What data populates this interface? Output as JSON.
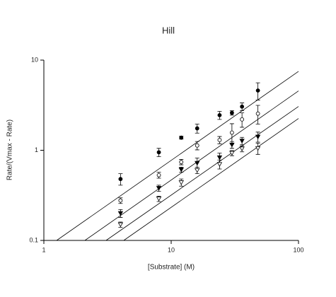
{
  "chart_data": {
    "type": "scatter",
    "title": "Hill",
    "x_label": "[Substrate] (M)",
    "y_label": "Rate/(Vmax - Rate)",
    "xscale": "log",
    "yscale": "log",
    "xlim": [
      1,
      100
    ],
    "ylim": [
      0.1,
      10
    ],
    "xticks": [
      1,
      10,
      100
    ],
    "yticks": [
      0.1,
      1,
      10
    ],
    "color": "#000000",
    "x": [
      4,
      8,
      12,
      16,
      24,
      30,
      36,
      48
    ],
    "series": [
      {
        "marker": "circle",
        "filled": true,
        "values": [
          0.48,
          0.95,
          1.38,
          1.75,
          2.45,
          2.6,
          3.05,
          4.6
        ],
        "errors": [
          0.07,
          0.1,
          0.05,
          0.2,
          0.25,
          0.15,
          0.3,
          1.0
        ],
        "fit": {
          "x": [
            1.26,
            100
          ],
          "values": [
            0.1,
            7.5
          ]
        }
      },
      {
        "marker": "circle",
        "filled": false,
        "values": [
          0.277,
          0.53,
          0.74,
          1.13,
          1.3,
          1.57,
          2.2,
          2.55
        ],
        "errors": [
          0.02,
          0.04,
          0.05,
          0.12,
          0.12,
          0.4,
          0.4,
          0.6
        ],
        "fit": {
          "x": [
            2.1,
            100
          ],
          "values": [
            0.1,
            4.55
          ]
        }
      },
      {
        "marker": "triangle",
        "filled": true,
        "values": [
          0.2,
          0.38,
          0.61,
          0.72,
          0.83,
          1.15,
          1.27,
          1.41
        ],
        "errors": [
          0.02,
          0.03,
          0.04,
          0.1,
          0.1,
          0.1,
          0.12,
          0.18
        ],
        "fit": {
          "x": [
            3.08,
            100
          ],
          "values": [
            0.1,
            3.06
          ]
        }
      },
      {
        "marker": "triangle",
        "filled": false,
        "values": [
          0.15,
          0.29,
          0.44,
          0.6,
          0.7,
          0.93,
          1.04,
          1.05
        ],
        "errors": [
          0.01,
          0.02,
          0.04,
          0.05,
          0.08,
          0.06,
          0.08,
          0.15
        ],
        "fit": {
          "x": [
            4.24,
            100
          ],
          "values": [
            0.1,
            2.25
          ]
        }
      }
    ]
  }
}
